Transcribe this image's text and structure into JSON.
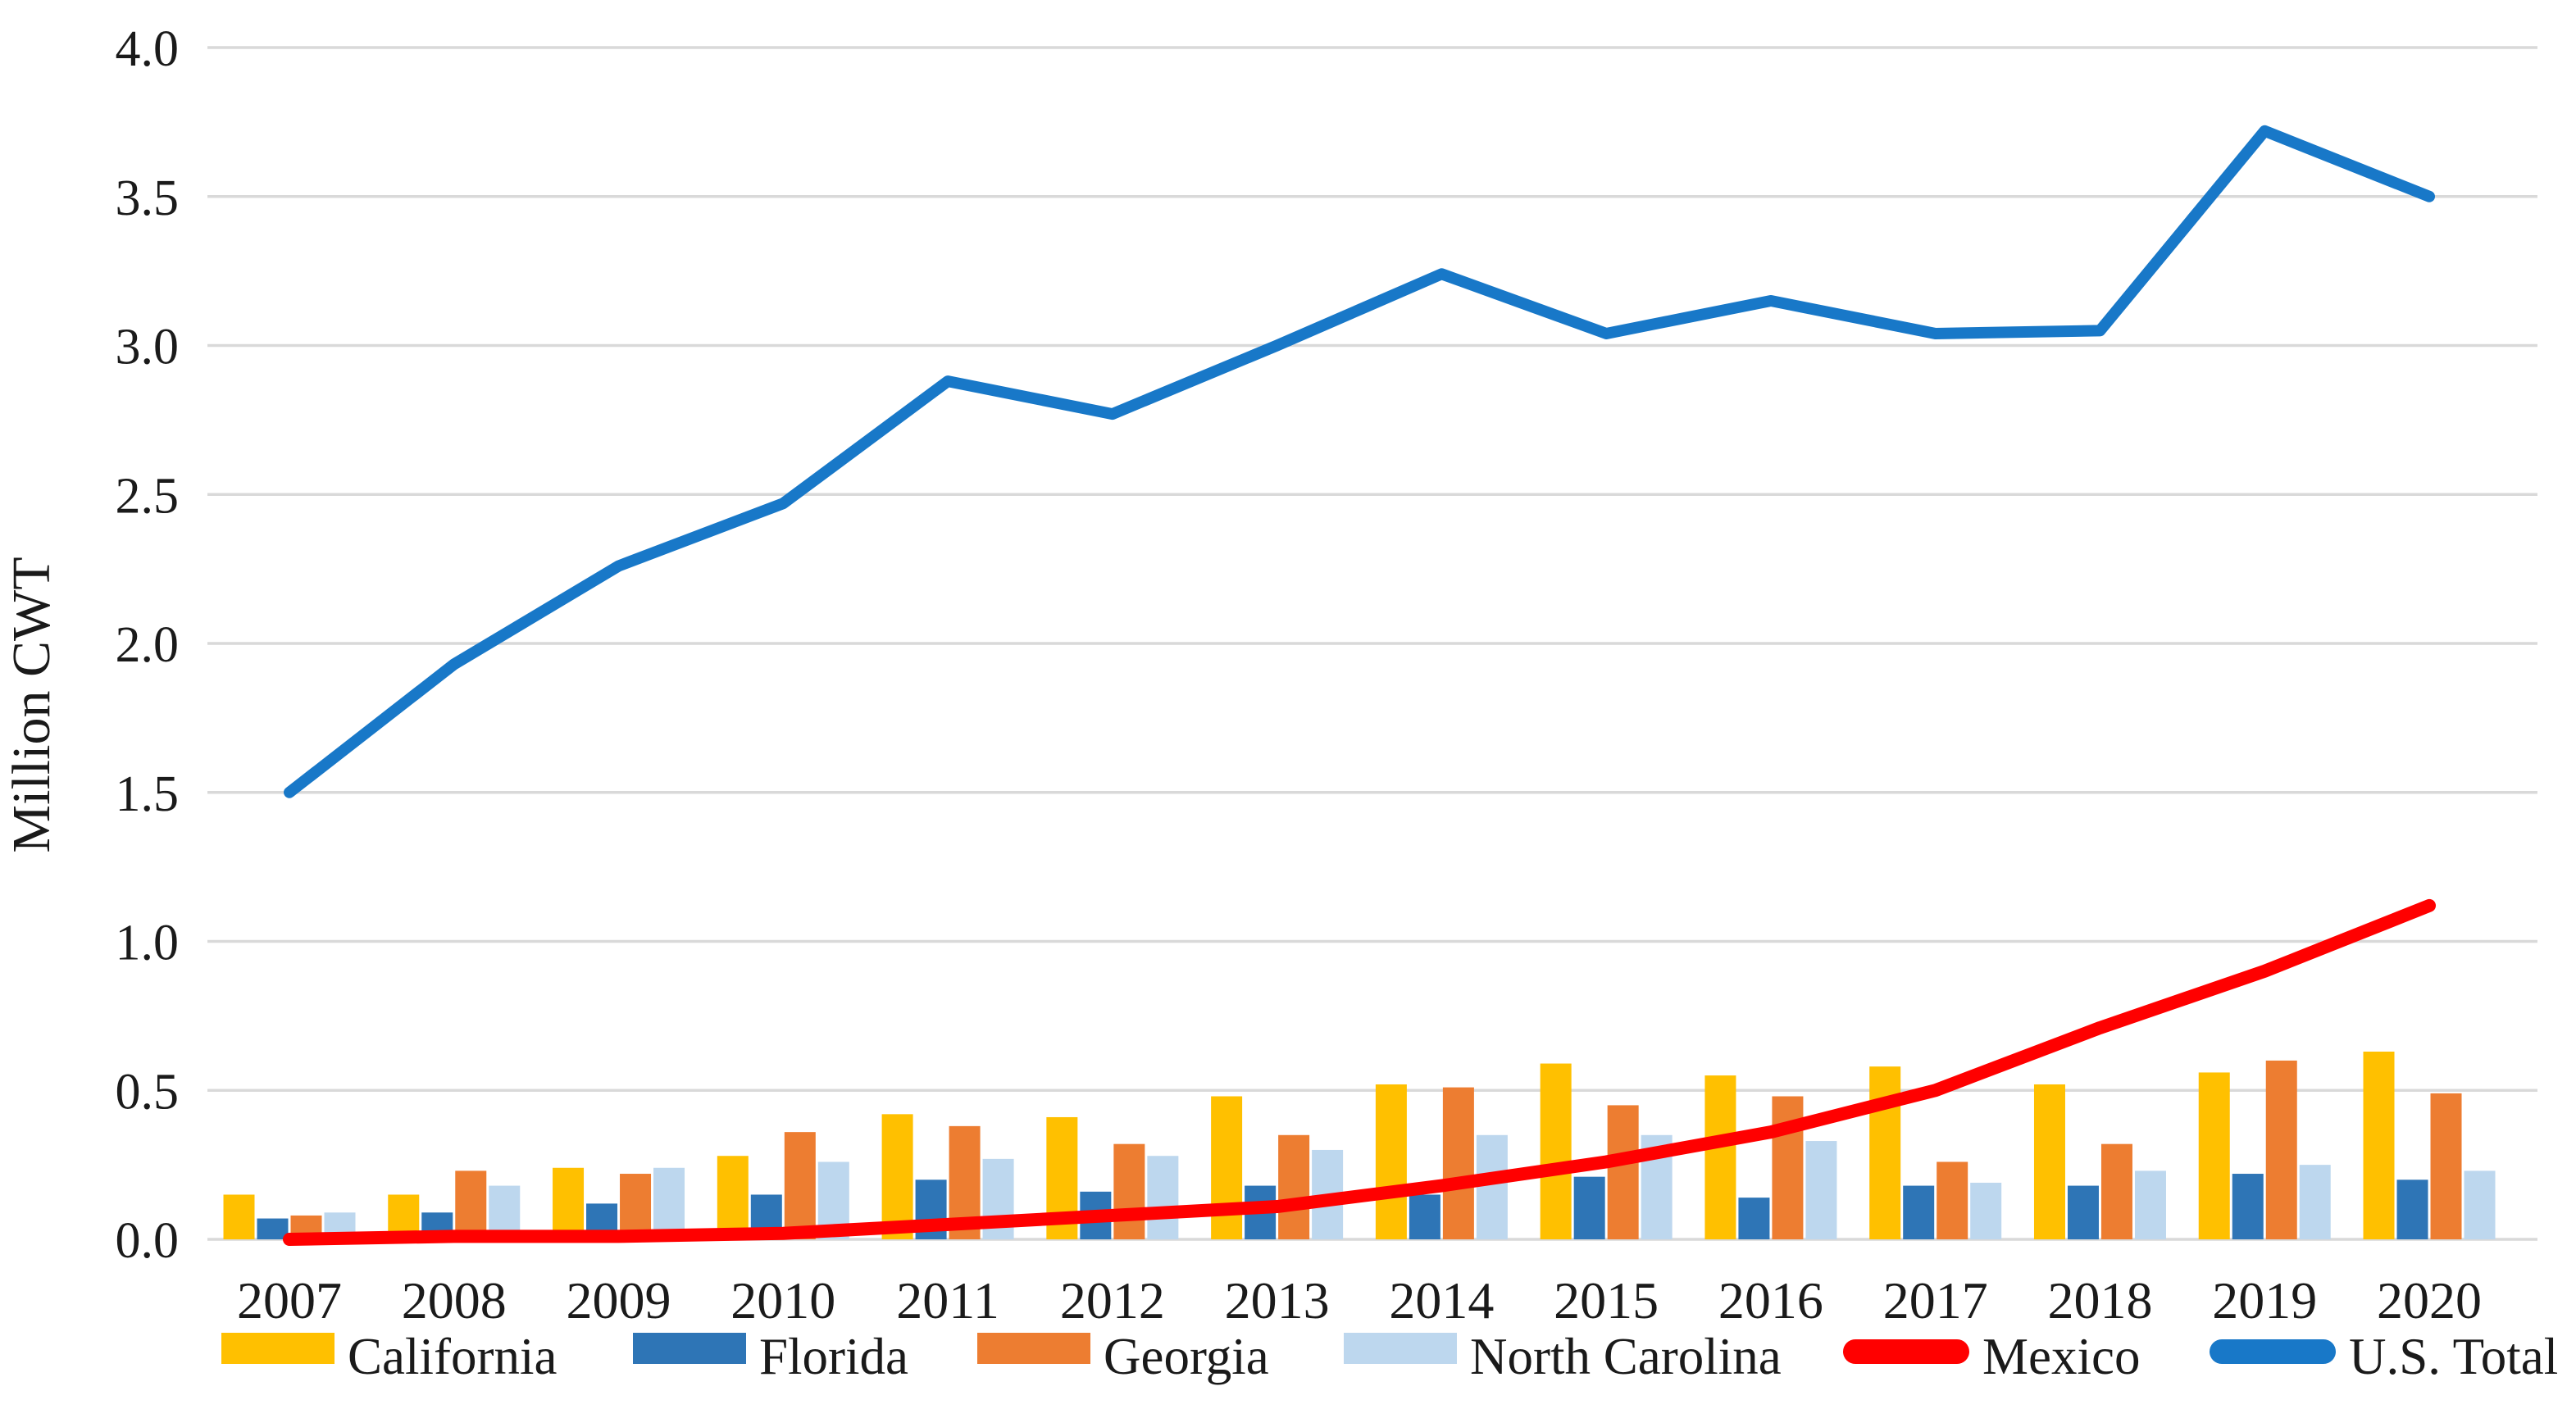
{
  "chart_data": {
    "type": "combo-bar-line",
    "title": "",
    "ylabel": "Million CWT",
    "xlabel": "",
    "ylim": [
      0.0,
      4.0
    ],
    "ytick_step": 0.5,
    "ytick_labels": [
      "0.0",
      "0.5",
      "1.0",
      "1.5",
      "2.0",
      "2.5",
      "3.0",
      "3.5",
      "4.0"
    ],
    "grid": true,
    "legend_position": "bottom",
    "categories": [
      "2007",
      "2008",
      "2009",
      "2010",
      "2011",
      "2012",
      "2013",
      "2014",
      "2015",
      "2016",
      "2017",
      "2018",
      "2019",
      "2020"
    ],
    "bar_series": [
      {
        "name": "California",
        "color": "#FFC000",
        "values": [
          0.15,
          0.15,
          0.24,
          0.28,
          0.42,
          0.41,
          0.48,
          0.52,
          0.59,
          0.55,
          0.58,
          0.52,
          0.56,
          0.63
        ]
      },
      {
        "name": "Florida",
        "color": "#2E75B6",
        "values": [
          0.07,
          0.09,
          0.12,
          0.15,
          0.2,
          0.16,
          0.18,
          0.15,
          0.21,
          0.14,
          0.18,
          0.18,
          0.22,
          0.2
        ]
      },
      {
        "name": "Georgia",
        "color": "#ED7D31",
        "values": [
          0.08,
          0.23,
          0.22,
          0.36,
          0.38,
          0.32,
          0.35,
          0.51,
          0.45,
          0.48,
          0.26,
          0.32,
          0.6,
          0.49
        ]
      },
      {
        "name": "North Carolina",
        "color": "#BDD7EE",
        "values": [
          0.09,
          0.18,
          0.24,
          0.26,
          0.27,
          0.28,
          0.3,
          0.35,
          0.35,
          0.33,
          0.19,
          0.23,
          0.25,
          0.23
        ]
      }
    ],
    "line_series": [
      {
        "name": "Mexico",
        "color": "#FF0000",
        "values": [
          0.0,
          0.01,
          0.01,
          0.02,
          0.05,
          0.08,
          0.11,
          0.18,
          0.26,
          0.36,
          0.5,
          0.71,
          0.9,
          1.12
        ]
      },
      {
        "name": "U.S. Total",
        "color": "#1878C8",
        "values": [
          1.5,
          1.93,
          2.26,
          2.47,
          2.88,
          2.77,
          3.0,
          3.24,
          3.04,
          3.15,
          3.04,
          3.05,
          3.72,
          3.5
        ]
      }
    ],
    "colors": {
      "gridline": "#D9D9D9",
      "text": "#1A1A1A",
      "background": "#FFFFFF"
    }
  }
}
